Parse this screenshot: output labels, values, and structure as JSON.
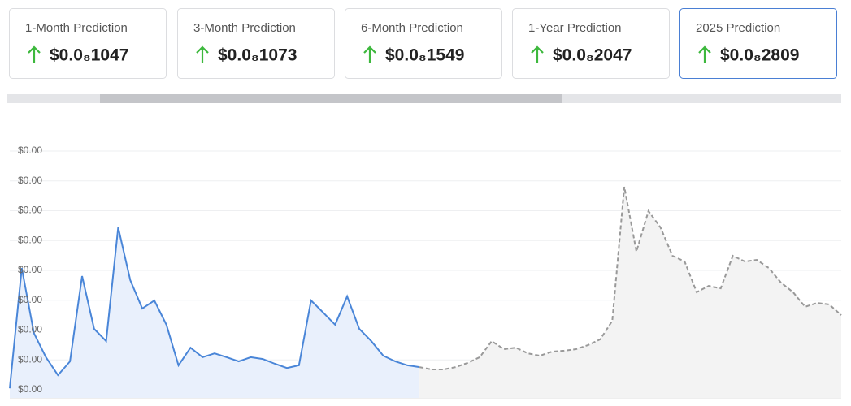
{
  "cards": [
    {
      "label": "1-Month Prediction",
      "value": "$0.0₈1047"
    },
    {
      "label": "3-Month Prediction",
      "value": "$0.0₈1073"
    },
    {
      "label": "6-Month Prediction",
      "value": "$0.0₈1549"
    },
    {
      "label": "1-Year Prediction",
      "value": "$0.0₈2047"
    },
    {
      "label": "2025 Prediction",
      "value": "$0.0₈2809",
      "selected": true
    }
  ],
  "chart_data": {
    "type": "area",
    "grid": true,
    "ylim": [
      0,
      8
    ],
    "yticks": [
      {
        "value": 0,
        "label": "$0.00"
      },
      {
        "value": 1,
        "label": "$0.00"
      },
      {
        "value": 2,
        "label": "$0.00"
      },
      {
        "value": 3,
        "label": "$0.00"
      },
      {
        "value": 4,
        "label": "$0.00"
      },
      {
        "value": 5,
        "label": "$0.00"
      },
      {
        "value": 6,
        "label": "$0.00"
      },
      {
        "value": 7,
        "label": "$0.00"
      },
      {
        "value": 8,
        "label": "$0.00"
      }
    ],
    "categories": [
      null,
      null,
      null,
      null,
      null,
      null,
      null,
      null,
      null,
      null,
      null,
      null,
      null,
      null,
      null,
      null,
      null,
      null,
      null,
      null,
      null,
      null,
      null,
      null,
      null,
      null,
      null,
      null,
      null,
      null,
      null,
      null,
      null,
      null,
      null,
      null,
      null,
      null,
      null,
      null,
      null,
      null,
      null,
      null,
      null,
      null,
      null,
      null,
      null,
      null,
      null,
      null,
      null,
      null,
      null,
      null,
      null,
      null,
      null,
      null,
      null,
      null,
      null,
      null,
      null,
      null,
      null,
      null,
      null,
      null
    ],
    "series": [
      {
        "color": "#4a86d8",
        "fill": "#e9f0fc",
        "dashed": false,
        "values": [
          0.05,
          4.08,
          1.9,
          1.09,
          0.49,
          0.95,
          3.81,
          2.04,
          1.63,
          5.44,
          3.67,
          2.72,
          2.99,
          2.18,
          0.82,
          1.41,
          1.09,
          1.22,
          1.09,
          0.95,
          1.09,
          1.03,
          0.87,
          0.73,
          0.82,
          2.99,
          2.59,
          2.18,
          3.13,
          2.04,
          1.63,
          1.14,
          0.95,
          0.82,
          0.76,
          null,
          null,
          null,
          null,
          null,
          null,
          null,
          null,
          null,
          null,
          null,
          null,
          null,
          null,
          null,
          null,
          null,
          null,
          null,
          null,
          null,
          null,
          null,
          null,
          null,
          null,
          null,
          null,
          null,
          null,
          null,
          null,
          null,
          null,
          null
        ]
      },
      {
        "color": "#999999",
        "fill": "#f3f3f3",
        "dashed": true,
        "values": [
          null,
          null,
          null,
          null,
          null,
          null,
          null,
          null,
          null,
          null,
          null,
          null,
          null,
          null,
          null,
          null,
          null,
          null,
          null,
          null,
          null,
          null,
          null,
          null,
          null,
          null,
          null,
          null,
          null,
          null,
          null,
          null,
          null,
          null,
          0.76,
          0.68,
          0.68,
          0.76,
          0.9,
          1.09,
          1.63,
          1.36,
          1.41,
          1.22,
          1.14,
          1.28,
          1.31,
          1.36,
          1.5,
          1.69,
          2.31,
          6.8,
          4.63,
          5.99,
          5.44,
          4.49,
          4.3,
          3.27,
          3.48,
          3.4,
          4.49,
          4.3,
          4.35,
          4.08,
          3.59,
          3.27,
          2.78,
          2.91,
          2.86,
          2.5
        ]
      }
    ]
  }
}
